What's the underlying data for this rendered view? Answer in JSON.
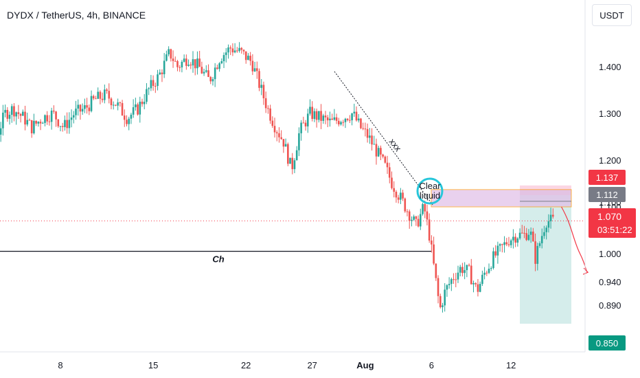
{
  "header": {
    "title": "DYDX / TetherUS, 4h, BINANCE",
    "currency": "USDT"
  },
  "colors": {
    "up": "#26a69a",
    "down": "#ef5350",
    "target_zone": "#b2dfdb",
    "supply_zone": "#e1bee7",
    "supply_border": "#ff9800",
    "marker_circle": "#26c6da",
    "price_tag": "#f23645",
    "level_tag": "#787b86",
    "target_tag": "#089981"
  },
  "annotations": {
    "trendline_label": "xxx",
    "channel_label": "Ch",
    "circle_label_line1": "Clear",
    "circle_label_line2": "liquid"
  },
  "price_tags": {
    "upper": "1.137",
    "level": "1.112",
    "current": "1.070",
    "countdown": "03:51:22",
    "target": "0.850",
    "partial_hidden": "1.100"
  },
  "chart_data": {
    "type": "candlestick",
    "title": "DYDX / TetherUS, 4h, BINANCE",
    "y_ticks": [
      1.4,
      1.3,
      1.2,
      1.1,
      1.0,
      0.94,
      0.89
    ],
    "y_tick_labels": [
      "1.400",
      "1.300",
      "1.200",
      "1.100",
      "1.000",
      "0.940",
      "0.890"
    ],
    "x_ticks": [
      {
        "label": "8",
        "day": 8
      },
      {
        "label": "15",
        "day": 15
      },
      {
        "label": "22",
        "day": 22
      },
      {
        "label": "27",
        "day": 27
      },
      {
        "label": "Aug",
        "day": 31
      },
      {
        "label": "6",
        "day": 36
      },
      {
        "label": "12",
        "day": 42
      }
    ],
    "ylim": [
      0.83,
      1.49
    ],
    "current_price": 1.07,
    "levels": {
      "support_line": 1.005,
      "supply_zone": [
        1.1,
        1.137
      ],
      "target_zone": [
        0.85,
        1.137
      ],
      "entry": 1.112,
      "target": 0.85
    },
    "price_path": [
      [
        -0.5,
        1.31
      ],
      [
        0.6,
        1.25
      ],
      [
        1.2,
        1.18
      ],
      [
        1.6,
        1.02
      ],
      [
        2.0,
        1.06
      ],
      [
        2.6,
        1.17
      ],
      [
        3.2,
        1.24
      ],
      [
        4.0,
        1.3
      ],
      [
        4.6,
        1.31
      ],
      [
        5.4,
        1.29
      ],
      [
        6.0,
        1.27
      ],
      [
        6.8,
        1.29
      ],
      [
        7.6,
        1.3
      ],
      [
        8.4,
        1.27
      ],
      [
        9.2,
        1.3
      ],
      [
        10.0,
        1.31
      ],
      [
        10.8,
        1.33
      ],
      [
        11.6,
        1.34
      ],
      [
        12.4,
        1.32
      ],
      [
        13.2,
        1.29
      ],
      [
        14.0,
        1.31
      ],
      [
        14.8,
        1.35
      ],
      [
        15.6,
        1.38
      ],
      [
        16.4,
        1.43
      ],
      [
        17.0,
        1.4
      ],
      [
        17.8,
        1.42
      ],
      [
        18.6,
        1.4
      ],
      [
        19.4,
        1.37
      ],
      [
        20.2,
        1.42
      ],
      [
        21.0,
        1.44
      ],
      [
        21.8,
        1.43
      ],
      [
        22.6,
        1.41
      ],
      [
        23.2,
        1.36
      ],
      [
        23.8,
        1.31
      ],
      [
        24.4,
        1.27
      ],
      [
        25.0,
        1.24
      ],
      [
        25.6,
        1.18
      ],
      [
        26.2,
        1.26
      ],
      [
        27.0,
        1.3
      ],
      [
        27.8,
        1.29
      ],
      [
        28.6,
        1.28
      ],
      [
        29.4,
        1.29
      ],
      [
        30.2,
        1.3
      ],
      [
        30.8,
        1.27
      ],
      [
        31.4,
        1.25
      ],
      [
        32.0,
        1.22
      ],
      [
        32.6,
        1.19
      ],
      [
        33.2,
        1.15
      ],
      [
        33.8,
        1.12
      ],
      [
        34.4,
        1.09
      ],
      [
        35.0,
        1.06
      ],
      [
        35.6,
        1.1
      ],
      [
        36.0,
        1.04
      ],
      [
        36.4,
        0.96
      ],
      [
        36.8,
        0.88
      ],
      [
        37.2,
        0.92
      ],
      [
        37.8,
        0.95
      ],
      [
        38.4,
        0.97
      ],
      [
        39.0,
        0.96
      ],
      [
        39.6,
        0.92
      ],
      [
        40.2,
        0.96
      ],
      [
        40.8,
        0.99
      ],
      [
        41.4,
        1.01
      ],
      [
        42.0,
        1.03
      ],
      [
        42.6,
        1.04
      ],
      [
        43.2,
        1.04
      ],
      [
        43.6,
        1.05
      ],
      [
        44.0,
        0.99
      ],
      [
        44.4,
        1.03
      ],
      [
        44.8,
        1.07
      ],
      [
        45.2,
        1.07
      ]
    ],
    "projection_path": [
      [
        45.8,
        1.1
      ],
      [
        46.6,
        1.06
      ],
      [
        47.2,
        1.0
      ],
      [
        47.8,
        0.96
      ]
    ]
  }
}
